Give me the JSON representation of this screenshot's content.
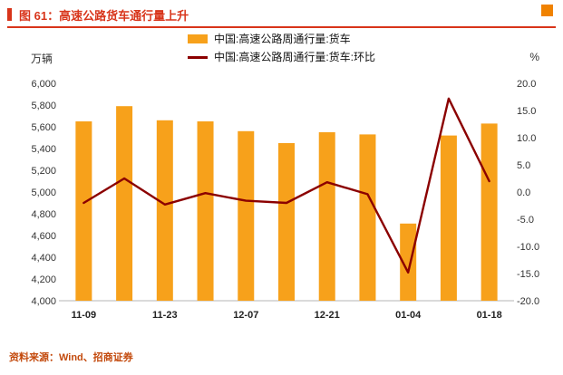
{
  "header": {
    "title": "图 61：高速公路货车通行量上升"
  },
  "units": {
    "left": "万辆",
    "right": "%"
  },
  "source": {
    "text": "资料来源：Wind、招商证券"
  },
  "colors": {
    "title_red": "#D8341A",
    "corner_orange": "#F08200",
    "bar_orange": "#F7A11B",
    "line_maroon": "#8B0000",
    "source_red": "#C34A0D"
  },
  "chart_data": {
    "type": "bar+line",
    "title": "高速公路货车通行量上升",
    "n_points": 11,
    "x_ticks": [
      {
        "index": 0,
        "label": "11-09"
      },
      {
        "index": 2,
        "label": "11-23"
      },
      {
        "index": 4,
        "label": "12-07"
      },
      {
        "index": 6,
        "label": "12-21"
      },
      {
        "index": 8,
        "label": "01-04"
      },
      {
        "index": 10,
        "label": "01-18"
      }
    ],
    "left_axis": {
      "label": "万辆",
      "min": 4000,
      "max": 6000,
      "tick_values": [
        4000,
        4200,
        4400,
        4600,
        4800,
        5000,
        5200,
        5400,
        5600,
        5800,
        6000
      ],
      "tick_labels": [
        "4,000",
        "4,200",
        "4,400",
        "4,600",
        "4,800",
        "5,000",
        "5,200",
        "5,400",
        "5,600",
        "5,800",
        "6,000"
      ]
    },
    "right_axis": {
      "label": "%",
      "min": -20,
      "max": 20,
      "tick_values": [
        -20,
        -15,
        -10,
        -5,
        0,
        5,
        10,
        15,
        20
      ],
      "tick_labels": [
        "-20.0",
        "-15.0",
        "-10.0",
        "-5.0",
        "0.0",
        "5.0",
        "10.0",
        "15.0",
        "20.0"
      ]
    },
    "series": [
      {
        "name": "中国:高速公路周通行量:货车",
        "type": "bar",
        "axis": "left",
        "color": "#F7A11B",
        "values": [
          5650,
          5790,
          5660,
          5650,
          5560,
          5450,
          5550,
          5530,
          4710,
          5520,
          5630
        ]
      },
      {
        "name": "中国:高速公路周通行量:货车:环比",
        "type": "line",
        "axis": "right",
        "color": "#8B0000",
        "values": [
          -2.0,
          2.5,
          -2.3,
          -0.2,
          -1.6,
          -2.0,
          1.8,
          -0.4,
          -14.8,
          17.2,
          2.0
        ]
      }
    ]
  }
}
